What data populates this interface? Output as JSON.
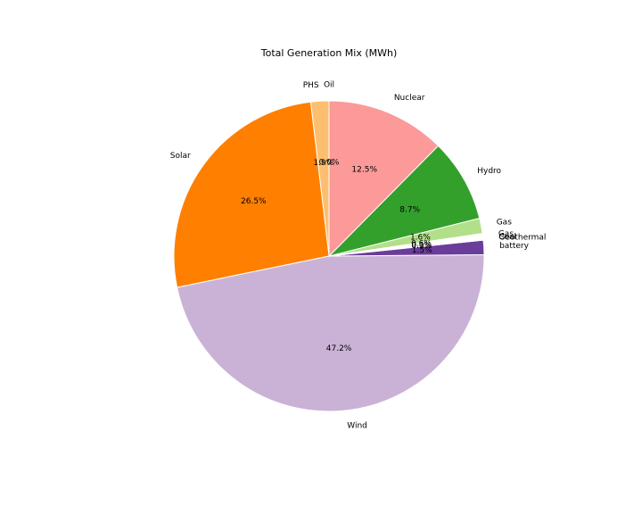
{
  "chart_data": {
    "type": "pie",
    "title": "Total Generation Mix (MWh)",
    "start_angle_deg": 90,
    "direction": "counterclockwise",
    "slices": [
      {
        "label": "Oil",
        "percent": 0.0,
        "pct_text": "0.0%",
        "color": "#fdbf6f"
      },
      {
        "label": "PHS",
        "percent": 1.9,
        "pct_text": "1.9%",
        "color": "#fdbf6f"
      },
      {
        "label": "Solar",
        "percent": 26.5,
        "pct_text": "26.5%",
        "color": "#ff7f00"
      },
      {
        "label": "Wind",
        "percent": 47.2,
        "pct_text": "47.2%",
        "color": "#cab2d6"
      },
      {
        "label": "battery",
        "percent": 1.5,
        "pct_text": "1.5%",
        "color": "#6a3d9a"
      },
      {
        "label": "Geothermal",
        "percent": 0.1,
        "pct_text": "0.1%",
        "color": "#1f78b4"
      },
      {
        "label": "Coal",
        "percent": 0.0,
        "pct_text": "0.0%",
        "color": "#a6cee3"
      },
      {
        "label": "Gas",
        "percent": 0.6,
        "pct_text": "0.6%",
        "color": "#ffffff"
      },
      {
        "label": "Gas",
        "percent": 1.6,
        "pct_text": "1.6%",
        "color": "#b2df8a"
      },
      {
        "label": "Hydro",
        "percent": 8.7,
        "pct_text": "8.7%",
        "color": "#33a02c"
      },
      {
        "label": "Nuclear",
        "percent": 12.5,
        "pct_text": "12.5%",
        "color": "#fb9a99"
      }
    ]
  }
}
